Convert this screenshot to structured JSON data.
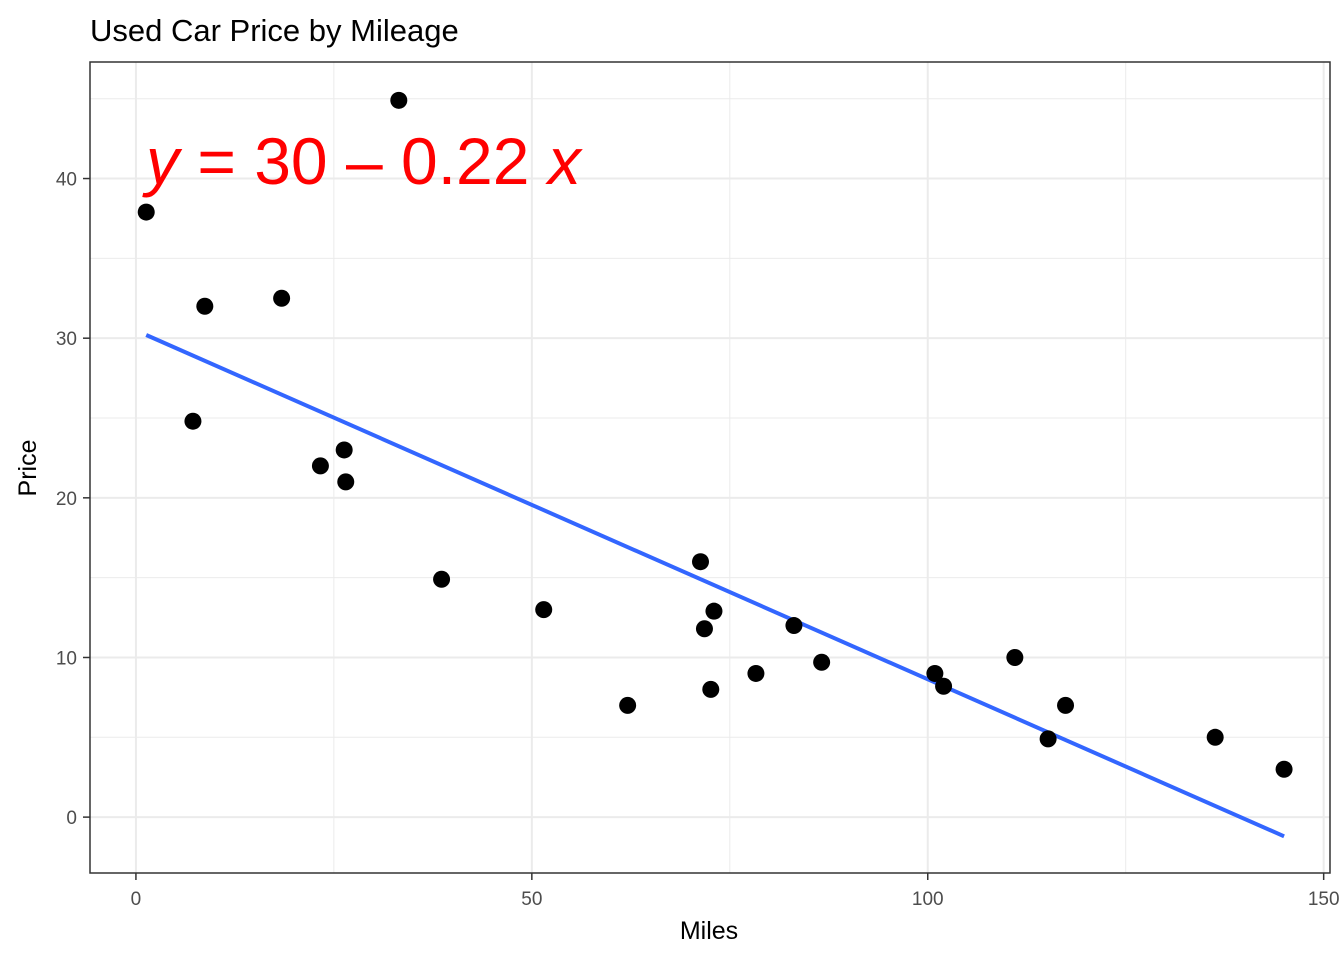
{
  "chart_data": {
    "type": "scatter",
    "title": "Used Car Price by Mileage",
    "xlabel": "Miles",
    "ylabel": "Price",
    "xlim": [
      -5.8,
      150.8
    ],
    "ylim": [
      -3.5,
      47.3
    ],
    "x_ticks": [
      0,
      50,
      100,
      150
    ],
    "y_ticks": [
      0,
      10,
      20,
      30,
      40
    ],
    "x_tick_labels": [
      "0",
      "50",
      "100",
      "150"
    ],
    "y_tick_labels": [
      "0",
      "10",
      "20",
      "30",
      "40"
    ],
    "grid": true,
    "legend": "none",
    "equation": {
      "y_var": "y",
      "rhs": " = 30 – 0.22 ",
      "x_var": "x"
    },
    "points": [
      {
        "x": 1.3,
        "y": 37.9
      },
      {
        "x": 7.2,
        "y": 24.8
      },
      {
        "x": 8.7,
        "y": 32.0
      },
      {
        "x": 18.4,
        "y": 32.5
      },
      {
        "x": 23.3,
        "y": 22.0
      },
      {
        "x": 26.3,
        "y": 23.0
      },
      {
        "x": 26.5,
        "y": 21.0
      },
      {
        "x": 33.2,
        "y": 44.9
      },
      {
        "x": 38.6,
        "y": 14.9
      },
      {
        "x": 51.5,
        "y": 13.0
      },
      {
        "x": 62.1,
        "y": 7.0
      },
      {
        "x": 71.3,
        "y": 16.0
      },
      {
        "x": 71.8,
        "y": 11.8
      },
      {
        "x": 72.6,
        "y": 8.0
      },
      {
        "x": 73.0,
        "y": 12.9
      },
      {
        "x": 78.3,
        "y": 9.0
      },
      {
        "x": 83.1,
        "y": 12.0
      },
      {
        "x": 86.6,
        "y": 9.7
      },
      {
        "x": 100.9,
        "y": 9.0
      },
      {
        "x": 102.0,
        "y": 8.2
      },
      {
        "x": 111.0,
        "y": 10.0
      },
      {
        "x": 115.2,
        "y": 4.9
      },
      {
        "x": 117.4,
        "y": 7.0
      },
      {
        "x": 136.3,
        "y": 5.0
      },
      {
        "x": 145.0,
        "y": 3.0
      }
    ],
    "fit_line": {
      "x": [
        1.3,
        145.0
      ],
      "y": [
        30.2,
        -1.2
      ],
      "color": "#3366FF"
    },
    "colors": {
      "points": "#000000",
      "equation": "#FF0000",
      "grid": "#EBEBEB",
      "panel_border": "#333333"
    }
  }
}
